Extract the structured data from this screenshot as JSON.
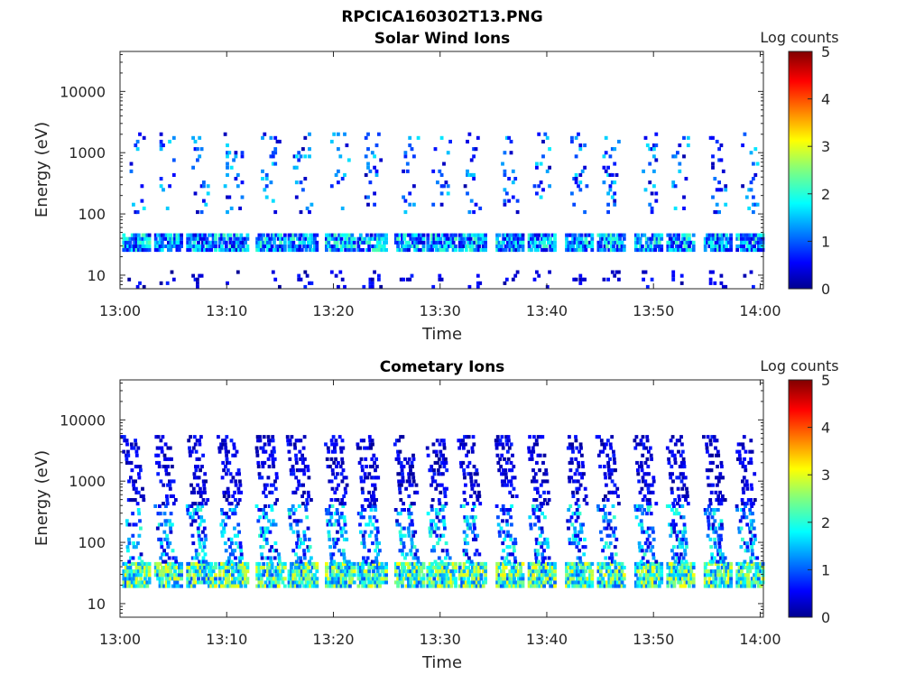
{
  "figure_title": "RPCICA160302T13.PNG",
  "colorbar": {
    "label": "Log counts",
    "ticks": [
      "0",
      "1",
      "2",
      "3",
      "4",
      "5"
    ],
    "range": [
      0,
      5
    ],
    "colormap": "jet"
  },
  "chart_data": [
    {
      "type": "heatmap",
      "title": "Solar Wind Ions",
      "xlabel": "Time",
      "ylabel": "Energy (eV)",
      "x_range": [
        "13:00",
        "14:00"
      ],
      "x_ticks": [
        "13:00",
        "13:10",
        "13:20",
        "13:30",
        "13:40",
        "13:50",
        "14:00"
      ],
      "y_scale": "log",
      "y_range": [
        6,
        45000
      ],
      "y_ticks": [
        "10",
        "100",
        "1000",
        "10000"
      ],
      "z_label": "Log counts",
      "z_range": [
        0,
        5
      ],
      "pulse_times_min": [
        1.5,
        4.5,
        7.5,
        10.5,
        14.0,
        17.0,
        20.5,
        23.5,
        27.0,
        30.0,
        33.0,
        36.5,
        39.5,
        43.0,
        46.0,
        49.5,
        52.5,
        56.0,
        59.0
      ],
      "bands": [
        {
          "e_lo": 24,
          "e_hi": 42,
          "z_min": 0.4,
          "z_max": 2.3,
          "note": "periodic low-energy pulses"
        },
        {
          "e_lo": 100,
          "e_hi": 2000,
          "z_min": 0.2,
          "z_max": 1.8,
          "note": "sparse streaks"
        },
        {
          "e_lo": 6,
          "e_hi": 12,
          "z_min": 0.1,
          "z_max": 0.8,
          "note": "occasional low-energy hits"
        }
      ],
      "colors": {
        "low": "#00008f",
        "mid": "#00ffff",
        "high": "#800000"
      }
    },
    {
      "type": "heatmap",
      "title": "Cometary Ions",
      "xlabel": "Time",
      "ylabel": "Energy (eV)",
      "x_range": [
        "13:00",
        "14:00"
      ],
      "x_ticks": [
        "13:00",
        "13:10",
        "13:20",
        "13:30",
        "13:40",
        "13:50",
        "14:00"
      ],
      "y_scale": "log",
      "y_range": [
        6,
        45000
      ],
      "y_ticks": [
        "10",
        "100",
        "1000",
        "10000"
      ],
      "z_label": "Log counts",
      "z_range": [
        0,
        5
      ],
      "pulse_times_min": [
        1.5,
        4.5,
        7.5,
        10.5,
        14.0,
        17.0,
        20.5,
        23.5,
        27.0,
        30.0,
        33.0,
        36.5,
        39.5,
        43.0,
        46.0,
        49.5,
        52.5,
        56.0,
        59.0
      ],
      "bands": [
        {
          "e_lo": 18,
          "e_hi": 45,
          "z_min": 1.0,
          "z_max": 3.2,
          "note": "bright periodic pulses"
        },
        {
          "e_lo": 45,
          "e_hi": 400,
          "z_min": 0.3,
          "z_max": 2.2,
          "note": "dispersed vertical streaks"
        },
        {
          "e_lo": 400,
          "e_hi": 5000,
          "z_min": 0.1,
          "z_max": 0.8,
          "note": "sparse high-energy hits"
        }
      ],
      "colors": {
        "low": "#00008f",
        "mid": "#00ffff",
        "high": "#ffff00"
      }
    }
  ]
}
